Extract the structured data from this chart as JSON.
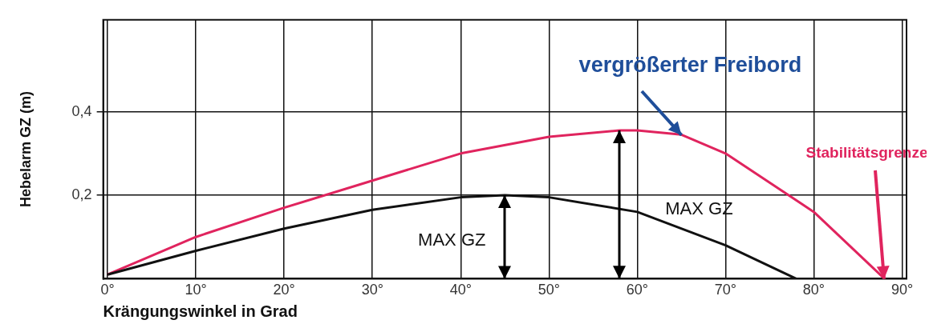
{
  "chart_data": {
    "type": "line",
    "xlabel": "Krängungswinkel in Grad",
    "ylabel": "Hebelarm GZ (m)",
    "xlim": [
      -0.5,
      90.5
    ],
    "ylim": [
      0,
      0.62
    ],
    "xticks": [
      {
        "value": 0,
        "label": "0°"
      },
      {
        "value": 10,
        "label": "10°"
      },
      {
        "value": 20,
        "label": "20°"
      },
      {
        "value": 30,
        "label": "30°"
      },
      {
        "value": 40,
        "label": "40°"
      },
      {
        "value": 50,
        "label": "50°"
      },
      {
        "value": 60,
        "label": "60°"
      },
      {
        "value": 70,
        "label": "70°"
      },
      {
        "value": 80,
        "label": "80°"
      },
      {
        "value": 90,
        "label": "90°"
      }
    ],
    "yticks": [
      {
        "value": 0.2,
        "label": "0,2"
      },
      {
        "value": 0.4,
        "label": "0,4"
      }
    ],
    "grid": true,
    "legend": false,
    "marker": "none",
    "line_style": "solid",
    "series": [
      {
        "color": "#111111",
        "x": [
          0,
          10,
          20,
          30,
          40,
          45,
          50,
          60,
          70,
          78
        ],
        "values": [
          0.01,
          0.067,
          0.12,
          0.165,
          0.195,
          0.2,
          0.195,
          0.16,
          0.08,
          0
        ]
      },
      {
        "color": "#e0245e",
        "x": [
          0,
          10,
          20,
          30,
          40,
          50,
          58,
          60,
          65,
          70,
          80,
          88
        ],
        "values": [
          0.01,
          0.1,
          0.17,
          0.235,
          0.3,
          0.34,
          0.355,
          0.355,
          0.345,
          0.3,
          0.16,
          0
        ]
      }
    ],
    "annotations": [
      "MAX GZ",
      "MAX GZ",
      {
        "text": "vergrößerter Freibord",
        "x": 65,
        "y": 0.345
      },
      {
        "text": "Stabilitätsgrenze",
        "x": 88,
        "y": 0
      }
    ]
  }
}
